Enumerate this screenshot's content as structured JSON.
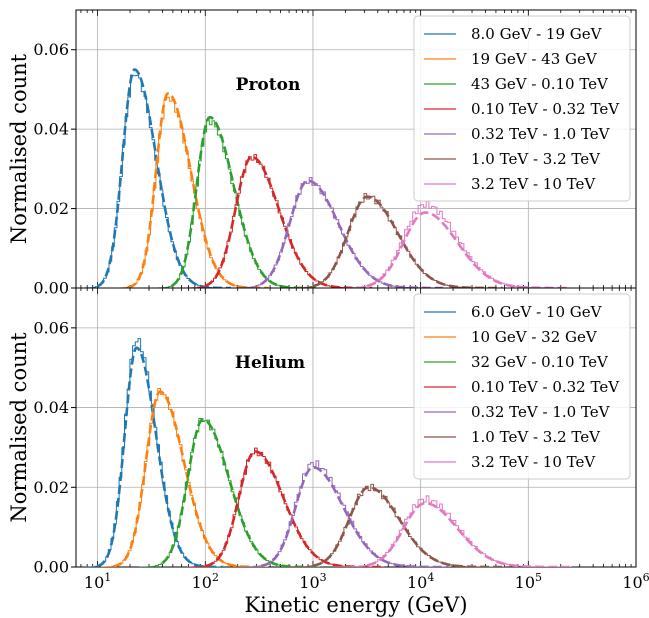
{
  "chart_data": [
    {
      "type": "line",
      "title": "Proton",
      "ylabel": "Normalised count",
      "xlabel": "",
      "xscale": "log",
      "xlim": [
        6.3,
        1000000
      ],
      "ylim": [
        0,
        0.07
      ],
      "yticks": [
        "0.00",
        "0.02",
        "0.04",
        "0.06"
      ],
      "grid": true,
      "legend": "top-right",
      "series": [
        {
          "name": "8.0 GeV - 19 GeV",
          "color": "#1f77b4",
          "peak_energy": 22,
          "peak": 0.055,
          "hist_peak": 0.054,
          "sigma_left": 0.11,
          "sigma_right": 0.2,
          "low_cut": 10
        },
        {
          "name": "19 GeV - 43 GeV",
          "color": "#ff7f0e",
          "peak_energy": 45,
          "peak": 0.049,
          "hist_peak": 0.048,
          "sigma_left": 0.11,
          "sigma_right": 0.21,
          "low_cut": 19
        },
        {
          "name": "43 GeV - 0.10 TeV",
          "color": "#2ca02c",
          "peak_energy": 110,
          "peak": 0.043,
          "hist_peak": 0.042,
          "sigma_left": 0.12,
          "sigma_right": 0.22,
          "low_cut": 50
        },
        {
          "name": "0.10 TeV - 0.32 TeV",
          "color": "#d62728",
          "peak_energy": 270,
          "peak": 0.033,
          "hist_peak": 0.033,
          "sigma_left": 0.15,
          "sigma_right": 0.25,
          "low_cut": 100
        },
        {
          "name": "0.32 TeV - 1.0 TeV",
          "color": "#9467bd",
          "peak_energy": 900,
          "peak": 0.027,
          "hist_peak": 0.027,
          "sigma_left": 0.17,
          "sigma_right": 0.28,
          "low_cut": 330
        },
        {
          "name": "1.0 TeV - 3.2 TeV",
          "color": "#8c564b",
          "peak_energy": 3200,
          "peak": 0.023,
          "hist_peak": 0.023,
          "sigma_left": 0.18,
          "sigma_right": 0.28,
          "low_cut": 1000
        },
        {
          "name": "3.2 TeV - 10 TeV",
          "color": "#e377c2",
          "peak_energy": 11000,
          "peak": 0.019,
          "hist_peak": 0.021,
          "sigma_left": 0.2,
          "sigma_right": 0.3,
          "low_cut": 3200
        }
      ]
    },
    {
      "type": "line",
      "title": "Helium",
      "ylabel": "Normalised count",
      "xlabel": "Kinetic energy (GeV)",
      "xscale": "log",
      "xlim": [
        6.3,
        1000000
      ],
      "ylim": [
        0,
        0.07
      ],
      "yticks": [
        "0.00",
        "0.02",
        "0.04",
        "0.06"
      ],
      "xticks": [
        {
          "base": "10",
          "exp": "1",
          "value": 10
        },
        {
          "base": "10",
          "exp": "2",
          "value": 100
        },
        {
          "base": "10",
          "exp": "3",
          "value": 1000
        },
        {
          "base": "10",
          "exp": "4",
          "value": 10000
        },
        {
          "base": "10",
          "exp": "5",
          "value": 100000
        },
        {
          "base": "10",
          "exp": "6",
          "value": 1000000
        }
      ],
      "grid": true,
      "legend": "top-right",
      "series": [
        {
          "name": "6.0 GeV - 10 GeV",
          "color": "#1f77b4",
          "peak_energy": 23,
          "peak": 0.055,
          "hist_peak": 0.057,
          "sigma_left": 0.11,
          "sigma_right": 0.18,
          "low_cut": 10
        },
        {
          "name": "10 GeV - 32 GeV",
          "color": "#ff7f0e",
          "peak_energy": 38,
          "peak": 0.044,
          "hist_peak": 0.044,
          "sigma_left": 0.13,
          "sigma_right": 0.22,
          "low_cut": 14
        },
        {
          "name": "32 GeV - 0.10 TeV",
          "color": "#2ca02c",
          "peak_energy": 95,
          "peak": 0.037,
          "hist_peak": 0.037,
          "sigma_left": 0.14,
          "sigma_right": 0.24,
          "low_cut": 40
        },
        {
          "name": "0.10 TeV - 0.32 TeV",
          "color": "#d62728",
          "peak_energy": 290,
          "peak": 0.029,
          "hist_peak": 0.029,
          "sigma_left": 0.15,
          "sigma_right": 0.26,
          "low_cut": 100
        },
        {
          "name": "0.32 TeV - 1.0 TeV",
          "color": "#9467bd",
          "peak_energy": 1000,
          "peak": 0.025,
          "hist_peak": 0.026,
          "sigma_left": 0.16,
          "sigma_right": 0.28,
          "low_cut": 330
        },
        {
          "name": "1.0 TeV - 3.2 TeV",
          "color": "#8c564b",
          "peak_energy": 3300,
          "peak": 0.02,
          "hist_peak": 0.02,
          "sigma_left": 0.18,
          "sigma_right": 0.28,
          "low_cut": 1000
        },
        {
          "name": "3.2 TeV - 10 TeV",
          "color": "#e377c2",
          "peak_energy": 11000,
          "peak": 0.016,
          "hist_peak": 0.017,
          "sigma_left": 0.2,
          "sigma_right": 0.3,
          "low_cut": 3200
        }
      ]
    }
  ]
}
